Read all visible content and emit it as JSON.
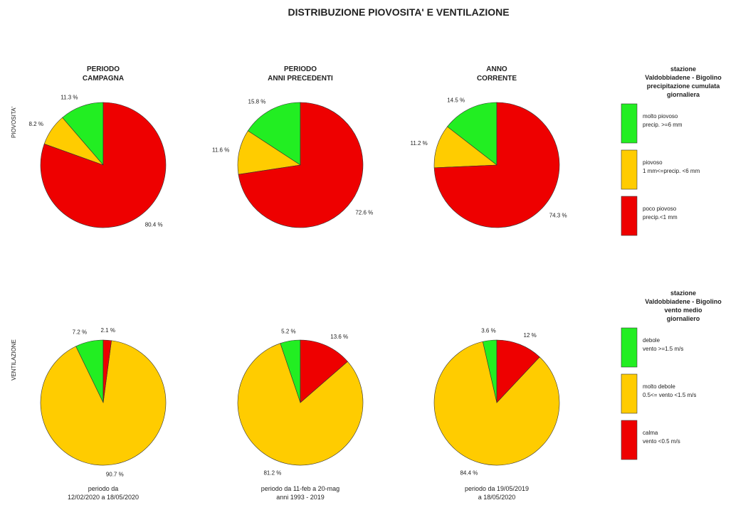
{
  "title": "DISTRIBUZIONE PIOVOSITA' E VENTILAZIONE",
  "column_headers": [
    "PERIODO\nCAMPAGNA",
    "PERIODO\nANNI PRECEDENTI",
    "ANNO\nCORRENTE"
  ],
  "row_labels": [
    "PIOVOSITA'",
    "VENTILAZIONE"
  ],
  "legends": [
    {
      "title": "stazione\nValdobbiadene - Bigolino\nprecipitazione cumulata\ngiornaliera",
      "categories": [
        "molto piovoso\nprecip. >=6 mm",
        "piovoso\n1 mm<=precip. <6 mm",
        "poco piovoso\nprecip.<1 mm"
      ],
      "colors": [
        "#22ee22",
        "#ffcc00",
        "#ee0000"
      ]
    },
    {
      "title": "stazione\nValdobbiadene - Bigolino\nvento medio\ngiornaliero",
      "categories": [
        "debole\nvento >=1.5 m/s",
        "molto debole\n0.5<= vento <1.5 m/s",
        "calma\nvento <0.5 m/s"
      ],
      "colors": [
        "#22ee22",
        "#ffcc00",
        "#ee0000"
      ]
    }
  ],
  "footers": [
    "periodo da\n12/02/2020  a   18/05/2020",
    "periodo da  11-feb  a  20-mag\nanni 1993 - 2019",
    "periodo da  19/05/2019\na  18/05/2020"
  ],
  "chart_data": [
    {
      "type": "pie",
      "values": [
        11.3,
        8.2,
        80.4
      ],
      "value_labels": [
        "11.3 %",
        "8.2 %",
        "80.4 %"
      ]
    },
    {
      "type": "pie",
      "values": [
        15.8,
        11.6,
        72.6
      ],
      "value_labels": [
        "15.8 %",
        "11.6 %",
        "72.6 %"
      ]
    },
    {
      "type": "pie",
      "values": [
        14.5,
        11.2,
        74.3
      ],
      "value_labels": [
        "14.5 %",
        "11.2 %",
        "74.3 %"
      ]
    },
    {
      "type": "pie",
      "values": [
        7.2,
        90.7,
        2.1
      ],
      "value_labels": [
        "7.2 %",
        "90.7 %",
        "2.1 %"
      ]
    },
    {
      "type": "pie",
      "values": [
        5.2,
        81.2,
        13.6
      ],
      "value_labels": [
        "5.2 %",
        "81.2 %",
        "13.6 %"
      ]
    },
    {
      "type": "pie",
      "values": [
        3.6,
        84.4,
        12
      ],
      "value_labels": [
        "3.6 %",
        "84.4 %",
        "12 %"
      ]
    }
  ]
}
